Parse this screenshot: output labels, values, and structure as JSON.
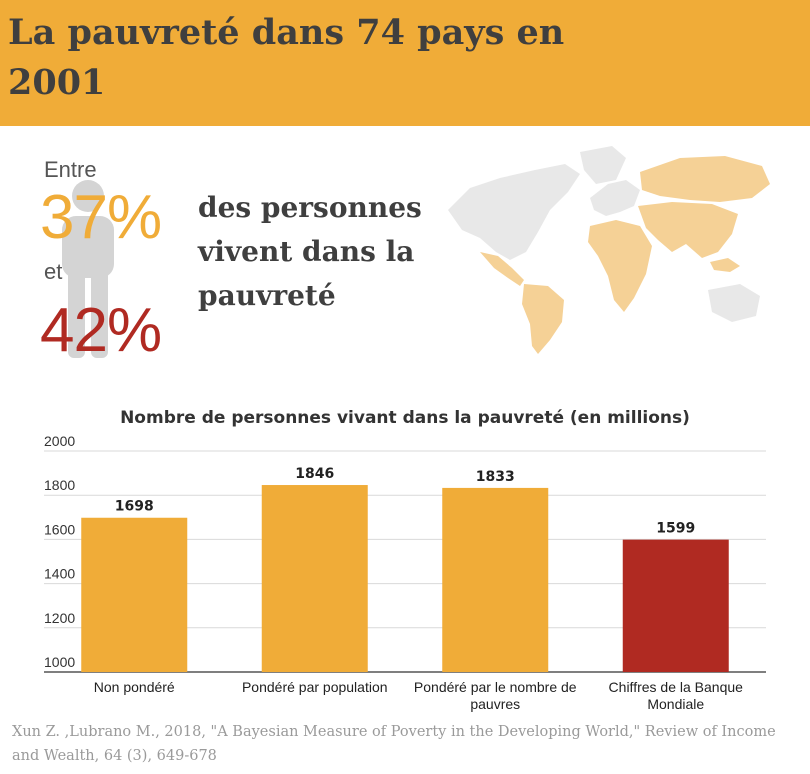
{
  "header": {
    "title": "La pauvreté dans 74 pays en 2001"
  },
  "callout": {
    "prefix": "Entre",
    "low_pct": "37%",
    "connector": "et",
    "high_pct": "42%",
    "headline": "des personnes vivent dans la pauvreté"
  },
  "colors": {
    "accent": "#f0ac38",
    "highlight": "#b02a22",
    "text": "#3f3f3f",
    "map_base": "#e8e8e8",
    "map_highlight": "#f5d196"
  },
  "chart_data": {
    "type": "bar",
    "title": "Nombre de personnes vivant dans la pauvreté (en millions)",
    "categories": [
      "Non pondéré",
      "Pondéré par population",
      "Pondéré par le nombre de pauvres",
      "Chiffres de la Banque Mondiale"
    ],
    "values": [
      1698,
      1846,
      1833,
      1599
    ],
    "bar_colors": [
      "#f0ac38",
      "#f0ac38",
      "#f0ac38",
      "#b02a22"
    ],
    "ylim": [
      1000,
      2000
    ],
    "yticks": [
      1000,
      1200,
      1400,
      1600,
      1800,
      2000
    ],
    "grid": true,
    "xlabel": "",
    "ylabel": ""
  },
  "source": "Xun Z. ,Lubrano M., 2018, \"A Bayesian Measure of Poverty in the Developing World,\" Review of Income and Wealth, 64 (3), 649-678"
}
